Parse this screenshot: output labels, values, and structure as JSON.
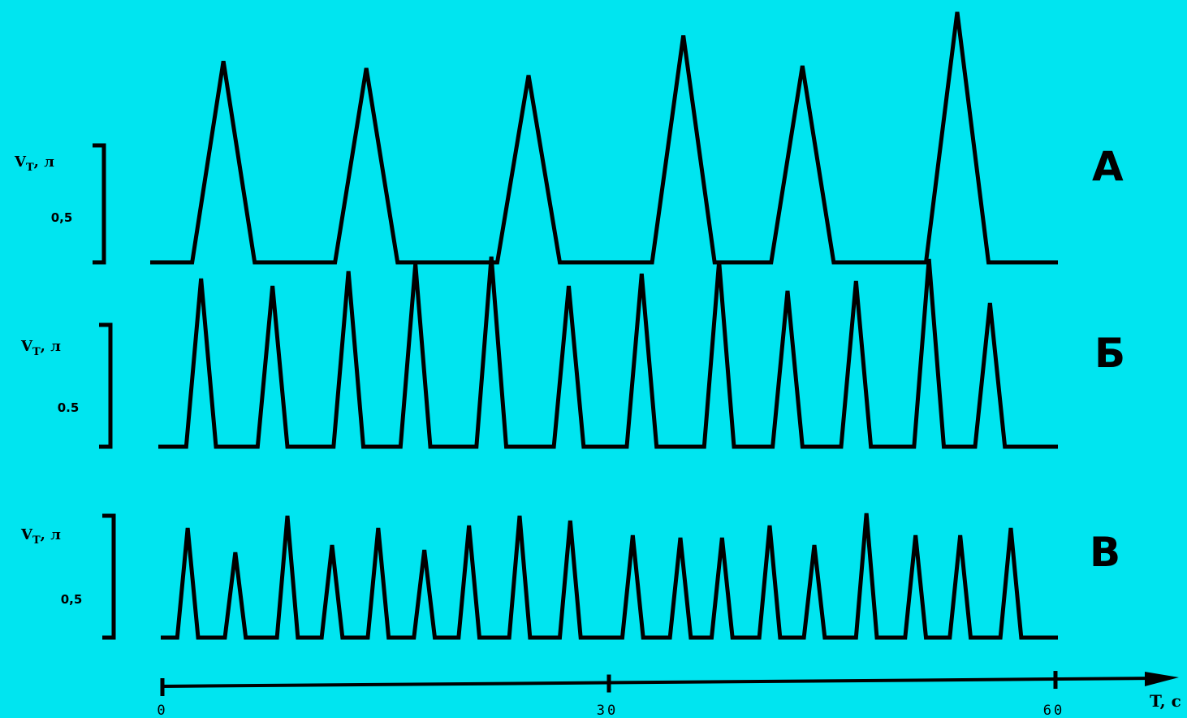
{
  "chart_data": [
    {
      "type": "line",
      "panel_label": "А",
      "ylabel_main": "V",
      "ylabel_sub": "T",
      "ylabel_unit": ", л",
      "scale_bar_value": 0.5,
      "scale_bar_label": "0,5",
      "baseline": 0,
      "peaks": [
        {
          "x": 4.1,
          "h": 0.86
        },
        {
          "x": 13.7,
          "h": 0.83
        },
        {
          "x": 24.6,
          "h": 0.8
        },
        {
          "x": 35.0,
          "h": 0.97
        },
        {
          "x": 43.0,
          "h": 0.84
        },
        {
          "x": 53.4,
          "h": 1.07
        }
      ],
      "peak_half_width": 2.1
    },
    {
      "type": "line",
      "panel_label": "Б",
      "ylabel_main": "V",
      "ylabel_sub": "T",
      "ylabel_unit": ", л",
      "scale_bar_value": 0.5,
      "scale_bar_label": "0.5",
      "baseline": 0,
      "peaks": [
        {
          "x": 2.6,
          "h": 0.69
        },
        {
          "x": 7.4,
          "h": 0.66
        },
        {
          "x": 12.5,
          "h": 0.72
        },
        {
          "x": 17.0,
          "h": 0.75
        },
        {
          "x": 22.1,
          "h": 0.78
        },
        {
          "x": 27.3,
          "h": 0.66
        },
        {
          "x": 32.2,
          "h": 0.71
        },
        {
          "x": 37.4,
          "h": 0.76
        },
        {
          "x": 42.0,
          "h": 0.64
        },
        {
          "x": 46.6,
          "h": 0.68
        },
        {
          "x": 51.5,
          "h": 0.77
        },
        {
          "x": 55.6,
          "h": 0.59
        }
      ],
      "peak_half_width": 1.0
    },
    {
      "type": "line",
      "panel_label": "В",
      "ylabel_main": "V",
      "ylabel_sub": "T",
      "ylabel_unit": ", л",
      "scale_bar_value": 0.5,
      "scale_bar_label": "0,5",
      "baseline": 0,
      "peaks": [
        {
          "x": 1.7,
          "h": 0.45
        },
        {
          "x": 4.9,
          "h": 0.35
        },
        {
          "x": 8.4,
          "h": 0.5
        },
        {
          "x": 11.4,
          "h": 0.38
        },
        {
          "x": 14.5,
          "h": 0.45
        },
        {
          "x": 17.6,
          "h": 0.36
        },
        {
          "x": 20.6,
          "h": 0.46
        },
        {
          "x": 24.0,
          "h": 0.5
        },
        {
          "x": 27.4,
          "h": 0.48
        },
        {
          "x": 31.6,
          "h": 0.42
        },
        {
          "x": 34.8,
          "h": 0.41
        },
        {
          "x": 37.6,
          "h": 0.41
        },
        {
          "x": 40.8,
          "h": 0.46
        },
        {
          "x": 43.8,
          "h": 0.38
        },
        {
          "x": 47.3,
          "h": 0.51
        },
        {
          "x": 50.6,
          "h": 0.42
        },
        {
          "x": 53.6,
          "h": 0.42
        },
        {
          "x": 57.0,
          "h": 0.45
        }
      ],
      "peak_half_width": 0.7
    }
  ],
  "x_axis": {
    "label": "T, c",
    "xlim": [
      0,
      60
    ],
    "ticks": [
      {
        "value": 0,
        "label": "0"
      },
      {
        "value": 30,
        "label": "30"
      },
      {
        "value": 60,
        "label": "60"
      }
    ]
  },
  "colors": {
    "background": "#00e5f0",
    "ink": "#000000"
  }
}
